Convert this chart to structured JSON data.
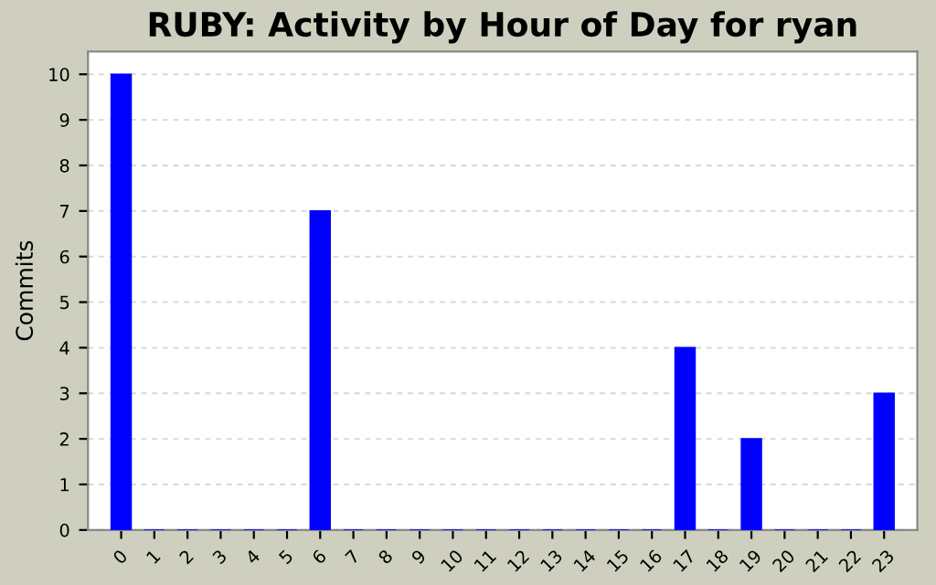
{
  "chart_data": {
    "type": "bar",
    "title": "RUBY: Activity by Hour of Day for ryan",
    "ylabel": "Commits",
    "categories": [
      "0",
      "1",
      "2",
      "3",
      "4",
      "5",
      "6",
      "7",
      "8",
      "9",
      "10",
      "11",
      "12",
      "13",
      "14",
      "15",
      "16",
      "17",
      "18",
      "19",
      "20",
      "21",
      "22",
      "23"
    ],
    "values": [
      10,
      0,
      0,
      0,
      0,
      0,
      7,
      0,
      0,
      0,
      0,
      0,
      0,
      0,
      0,
      0,
      0,
      4,
      0,
      2,
      0,
      0,
      0,
      3
    ],
    "color": "#0000ff",
    "ylim": [
      0,
      10.5
    ],
    "yticks": [
      0,
      1,
      2,
      3,
      4,
      5,
      6,
      7,
      8,
      9,
      10
    ],
    "grid": "y",
    "legend": false
  }
}
